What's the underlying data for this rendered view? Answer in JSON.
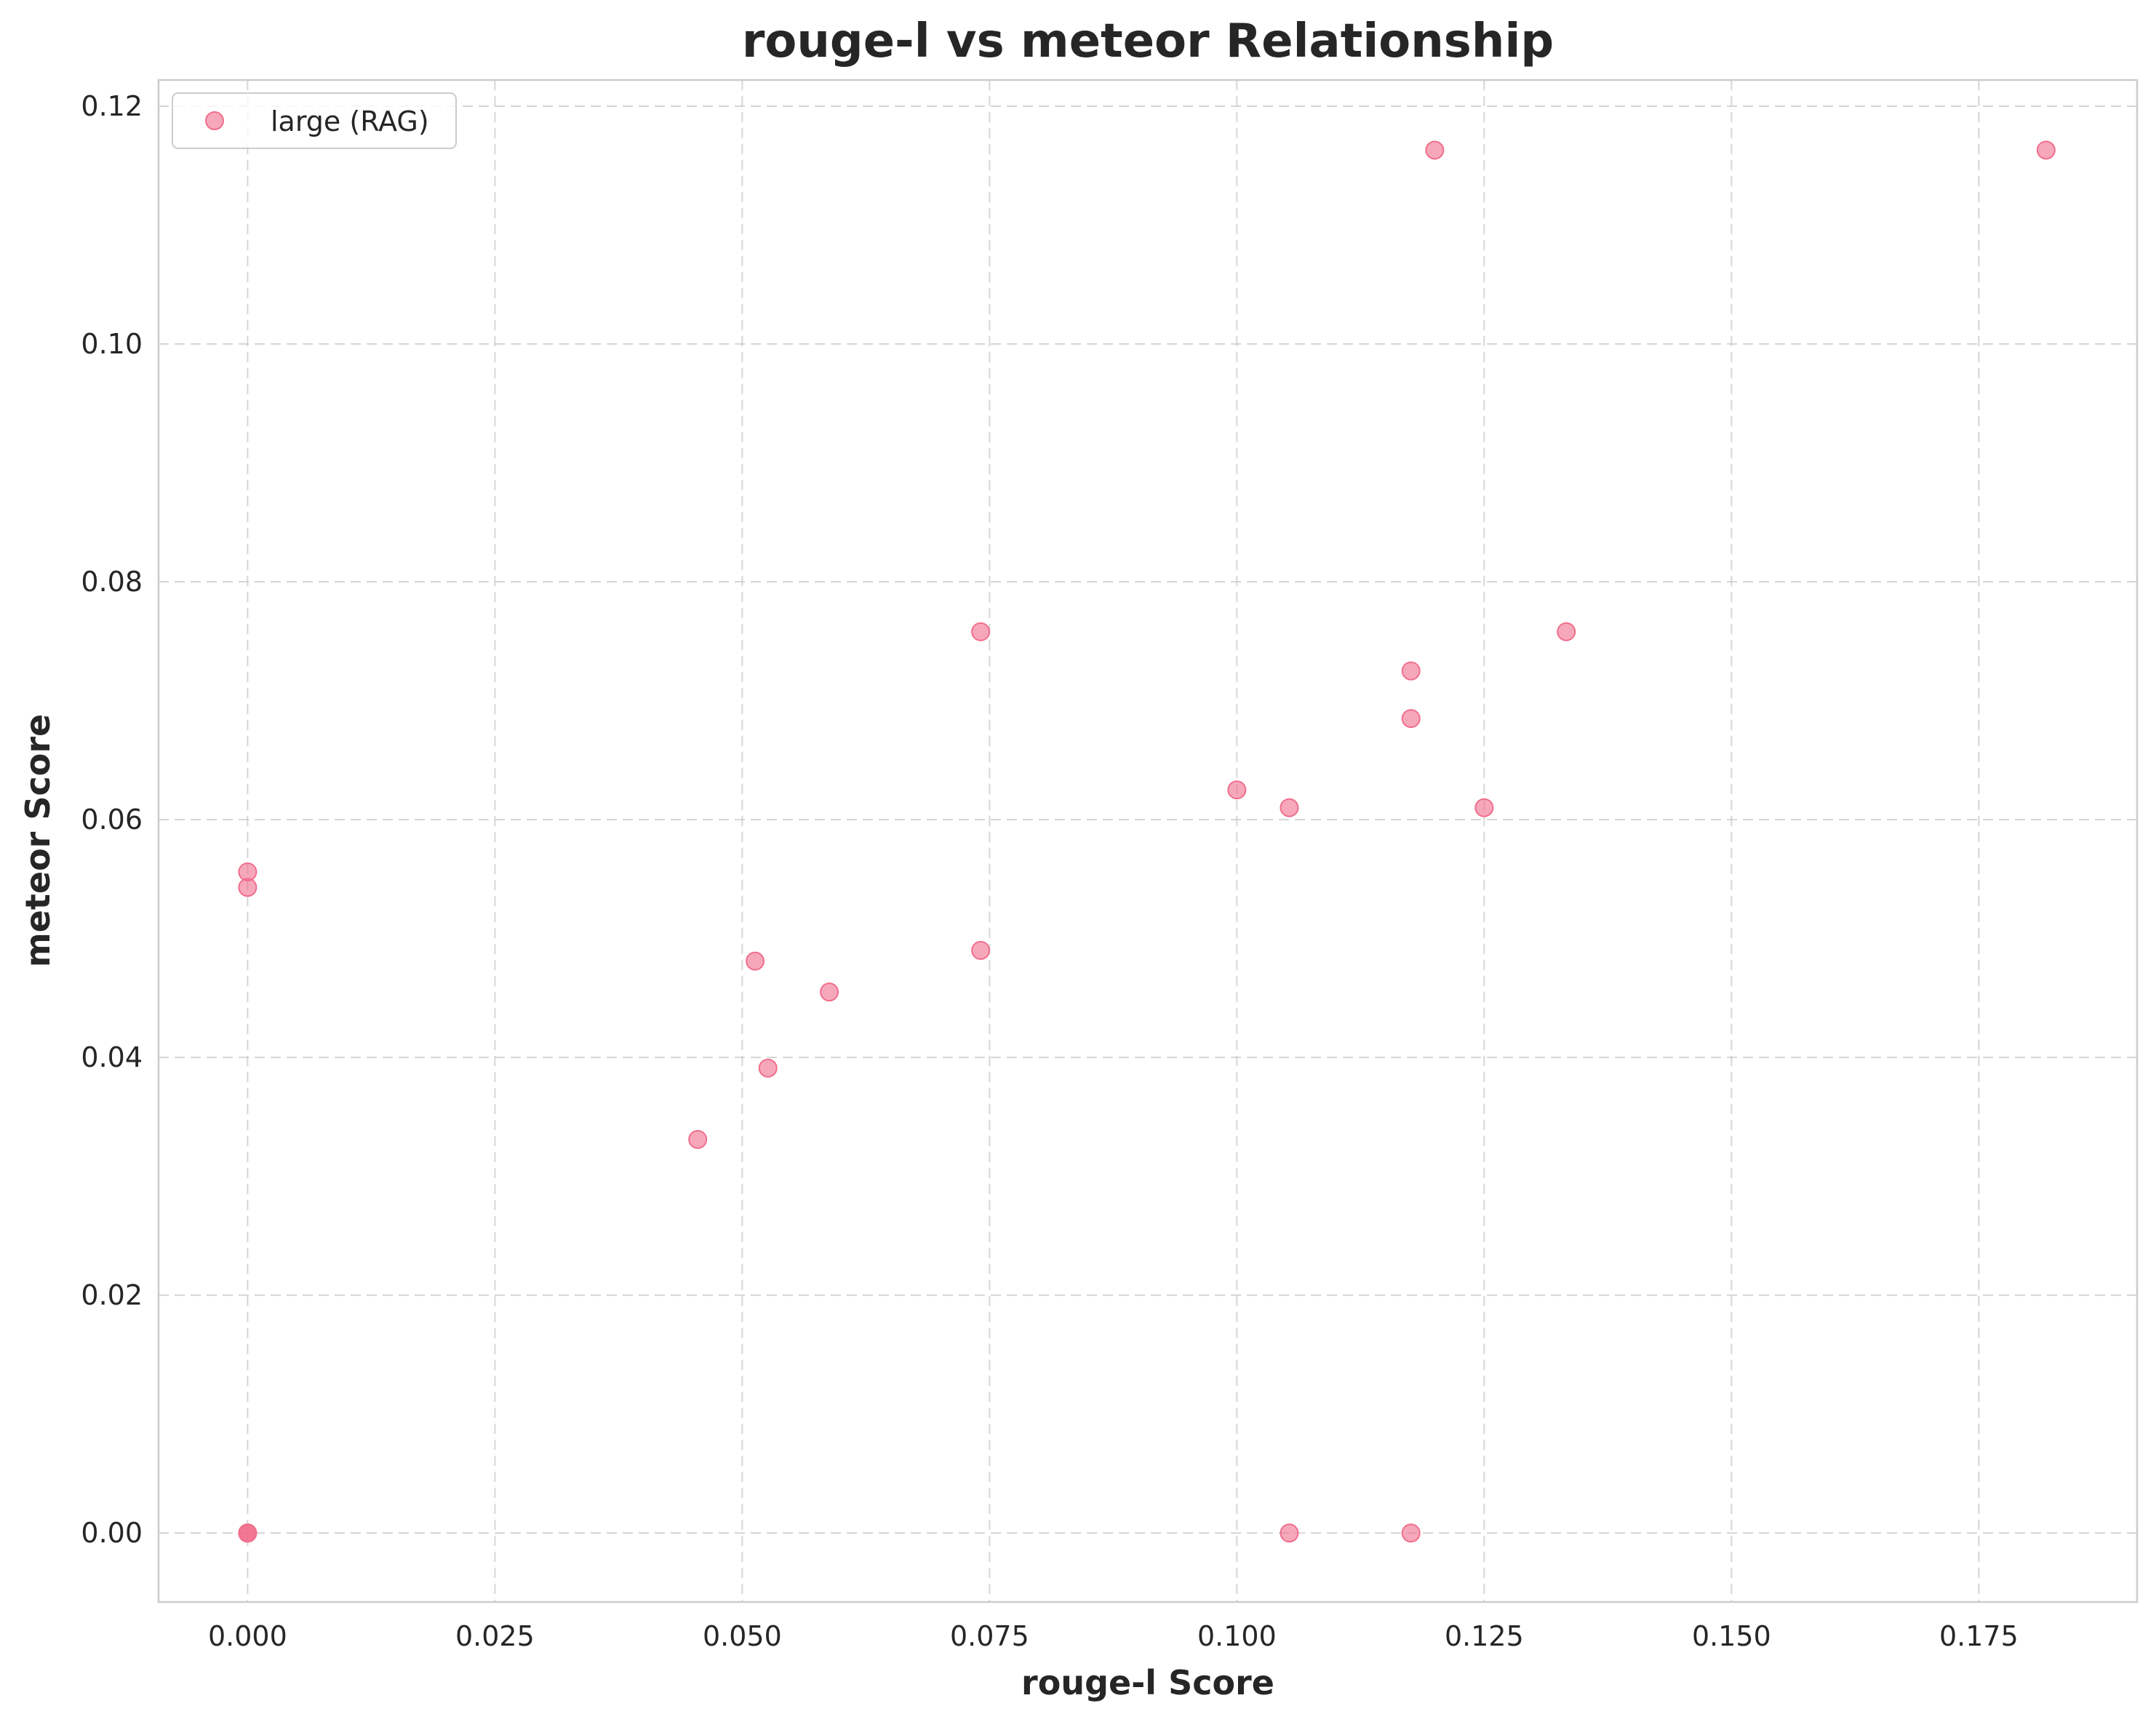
{
  "chart_data": {
    "type": "scatter",
    "title": "rouge-l vs meteor Relationship",
    "xlabel": "rouge-l Score",
    "ylabel": "meteor Score",
    "xlim": [
      -0.009,
      0.191
    ],
    "ylim": [
      -0.0058,
      0.1222
    ],
    "xticks": [
      0.0,
      0.025,
      0.05,
      0.075,
      0.1,
      0.125,
      0.15,
      0.175
    ],
    "xtick_labels": [
      "0.000",
      "0.025",
      "0.050",
      "0.075",
      "0.100",
      "0.125",
      "0.150",
      "0.175"
    ],
    "yticks": [
      0.0,
      0.02,
      0.04,
      0.06,
      0.08,
      0.1,
      0.12
    ],
    "ytick_labels": [
      "0.00",
      "0.02",
      "0.04",
      "0.06",
      "0.08",
      "0.10",
      "0.12"
    ],
    "grid": true,
    "legend_position": "top-left",
    "series": [
      {
        "name": "large (RAG)",
        "color": "#f06e8c",
        "x": [
          0.0,
          0.0,
          0.0,
          0.0,
          0.0,
          0.0455,
          0.0513,
          0.0526,
          0.0588,
          0.0741,
          0.0741,
          0.1,
          0.1053,
          0.1053,
          0.1176,
          0.1176,
          0.1176,
          0.12,
          0.125,
          0.1333,
          0.1818
        ],
        "y": [
          0.0,
          0.0,
          0.0,
          0.0556,
          0.0543,
          0.0331,
          0.0481,
          0.0391,
          0.0455,
          0.0758,
          0.049,
          0.0625,
          0.061,
          0.0,
          0.0725,
          0.0685,
          0.0,
          0.1163,
          0.061,
          0.0758,
          0.1163
        ]
      }
    ]
  }
}
